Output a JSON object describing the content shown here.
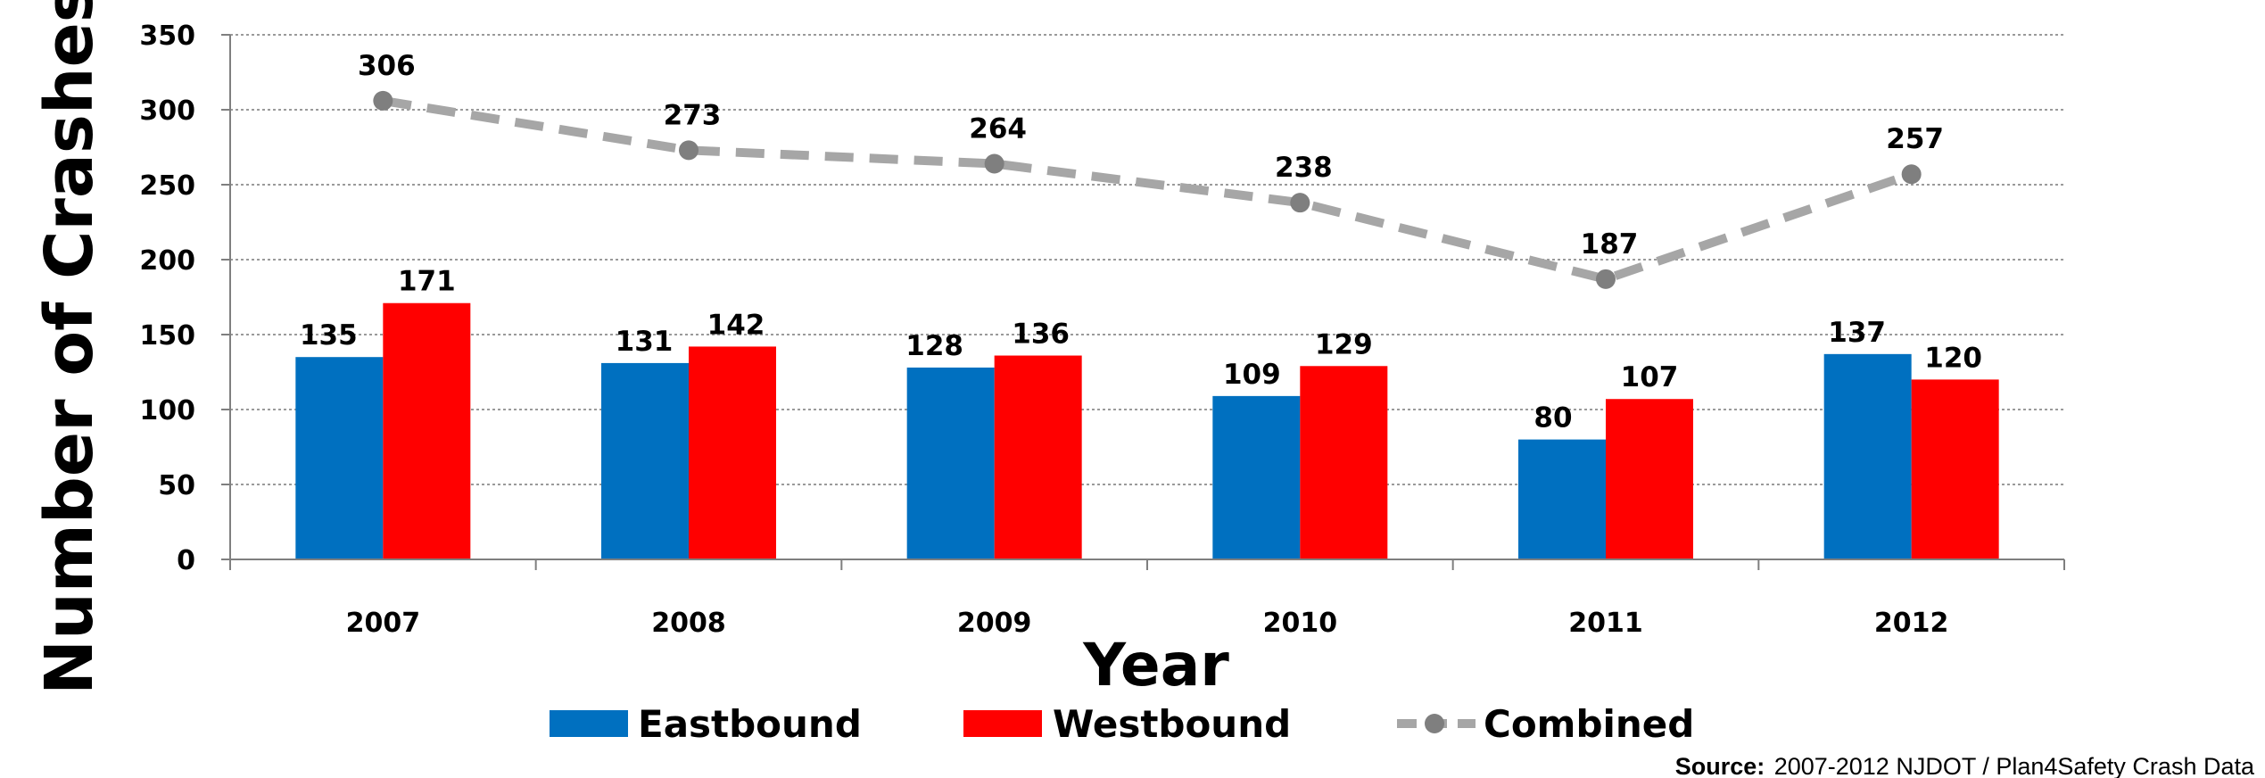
{
  "chart_data": {
    "type": "bar",
    "categories": [
      "2007",
      "2008",
      "2009",
      "2010",
      "2011",
      "2012"
    ],
    "series": [
      {
        "name": "Eastbound",
        "type": "bar",
        "color": "#0070C0",
        "values": [
          135,
          131,
          128,
          109,
          80,
          137
        ]
      },
      {
        "name": "Westbound",
        "type": "bar",
        "color": "#FF0000",
        "values": [
          171,
          142,
          136,
          129,
          107,
          120
        ]
      },
      {
        "name": "Combined",
        "type": "line",
        "style": "dashed",
        "color": "#A6A6A6",
        "marker_color": "#7F7F7F",
        "values": [
          306,
          273,
          264,
          238,
          187,
          257
        ]
      }
    ],
    "xlabel": "Year",
    "ylabel": "Number of Crashes",
    "ylim": [
      0,
      350
    ],
    "yticks": [
      "0",
      "50",
      "100",
      "150",
      "200",
      "250",
      "300",
      "350"
    ],
    "grid": true,
    "legend": "bottom"
  },
  "source": {
    "label": "Source:",
    "text": "2007-2012 NJDOT / Plan4Safety Crash Data"
  }
}
